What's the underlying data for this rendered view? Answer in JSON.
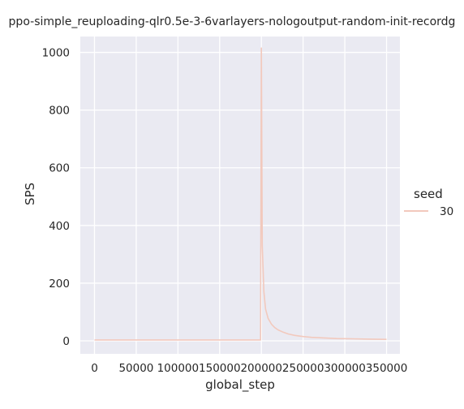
{
  "chart_data": {
    "type": "line",
    "title": "ppo-simple_reuploading-qlr0.5e-3-6varlayers-nologoutput-random-init-recordg",
    "xlabel": "global_step",
    "ylabel": "SPS",
    "xlim": [
      -17000,
      366000
    ],
    "ylim": [
      -45,
      1055
    ],
    "xticks": [
      0,
      50000,
      100000,
      150000,
      200000,
      250000,
      300000,
      350000
    ],
    "yticks": [
      0,
      200,
      400,
      600,
      800,
      1000
    ],
    "grid": true,
    "background": "#eaeaf2",
    "legend": {
      "title": "seed",
      "placement": "right"
    },
    "series": [
      {
        "name": "30",
        "color": "#f2c9bd",
        "x": [
          0,
          50000,
          100000,
          150000,
          198000,
          199000,
          199500,
          200000,
          201000,
          203000,
          205000,
          208000,
          212000,
          216000,
          220000,
          226000,
          232000,
          240000,
          250000,
          260000,
          275000,
          290000,
          310000,
          330000,
          350000
        ],
        "y": [
          3,
          3,
          3,
          3,
          3,
          3,
          500,
          1015,
          330,
          170,
          110,
          78,
          58,
          46,
          38,
          30,
          24,
          19,
          15,
          12,
          10,
          8,
          7,
          6,
          5
        ]
      }
    ]
  }
}
